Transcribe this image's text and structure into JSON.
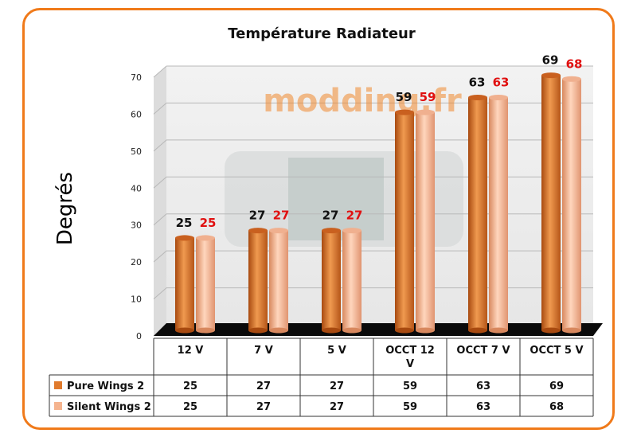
{
  "chart_data": {
    "type": "bar",
    "title": "Température Radiateur",
    "ylabel": "Degrés",
    "ylim": [
      0,
      70
    ],
    "yticks": [
      0,
      10,
      20,
      30,
      40,
      50,
      60,
      70
    ],
    "categories": [
      "12 V",
      "7 V",
      "5 V",
      "OCCT 12 V",
      "OCCT 7 V",
      "OCCT 5 V"
    ],
    "series": [
      {
        "name": "Pure Wings 2",
        "values": [
          25,
          27,
          27,
          59,
          63,
          69
        ],
        "color": "#e07a2c",
        "label_color": "#111111"
      },
      {
        "name": "Silent Wings 2",
        "values": [
          25,
          27,
          27,
          59,
          63,
          68
        ],
        "color": "#f5b48f",
        "label_color": "#e01010"
      }
    ],
    "legend": "table-bottom",
    "grid": true,
    "watermark": "modding.fr"
  }
}
